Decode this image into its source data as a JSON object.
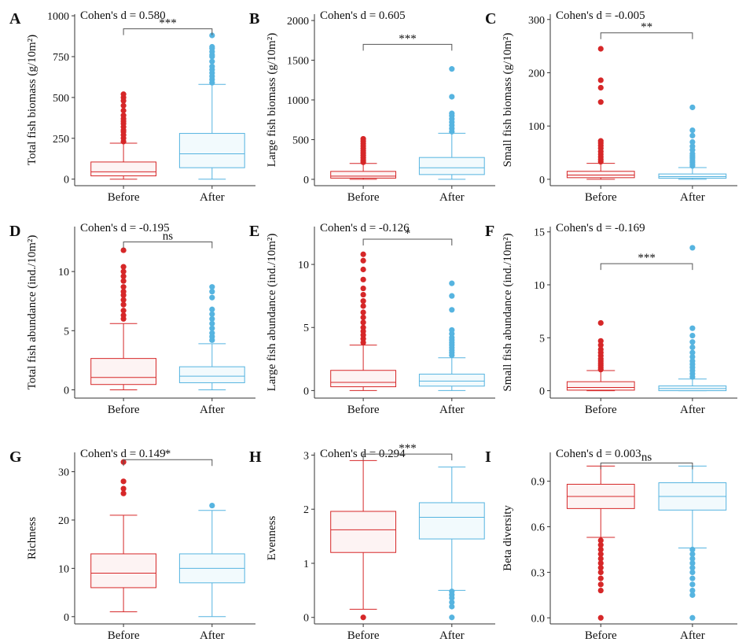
{
  "colors": {
    "before": "#d62728",
    "after": "#56b4e0"
  },
  "chart_data": [
    {
      "panel": "A",
      "type": "box",
      "cohen": "Cohen's d = 0.580",
      "ylabel": "Total fish biomass (g/10m²)",
      "categories": [
        "Before",
        "After"
      ],
      "ylim": [
        -40,
        1010
      ],
      "yticks": [
        0,
        250,
        500,
        750,
        1000
      ],
      "yticklabels": [
        "0",
        "250",
        "500",
        "750",
        "1000"
      ],
      "significance": "***",
      "bracket_y": 920,
      "boxes": [
        {
          "name": "Before",
          "min": 0,
          "q1": 20,
          "median": 45,
          "q3": 105,
          "max": 220,
          "outliers": [
            230,
            250,
            270,
            290,
            300,
            320,
            340,
            355,
            370,
            390,
            420,
            450,
            480,
            500,
            520
          ]
        },
        {
          "name": "After",
          "min": 0,
          "q1": 70,
          "median": 155,
          "q3": 280,
          "max": 580,
          "outliers": [
            590,
            610,
            630,
            650,
            670,
            690,
            720,
            750,
            760,
            780,
            800,
            810,
            880
          ]
        }
      ]
    },
    {
      "panel": "B",
      "type": "box",
      "cohen": "Cohen's d = 0.605",
      "ylabel": "Large fish biomass (g/10m²)",
      "categories": [
        "Before",
        "After"
      ],
      "ylim": [
        -80,
        2080
      ],
      "yticks": [
        0,
        500,
        1000,
        1500,
        2000
      ],
      "yticklabels": [
        "0",
        "500",
        "1000",
        "1500",
        "2000"
      ],
      "significance": "***",
      "bracket_y": 1700,
      "boxes": [
        {
          "name": "Before",
          "min": 0,
          "q1": 15,
          "median": 40,
          "q3": 100,
          "max": 200,
          "outliers": [
            215,
            240,
            270,
            300,
            330,
            360,
            390,
            420,
            450,
            480,
            510
          ]
        },
        {
          "name": "After",
          "min": 0,
          "q1": 60,
          "median": 145,
          "q3": 275,
          "max": 580,
          "outliers": [
            600,
            640,
            680,
            720,
            760,
            800,
            830,
            1040,
            1390
          ]
        }
      ]
    },
    {
      "panel": "C",
      "type": "box",
      "cohen": "Cohen's d = -0.005",
      "ylabel": "Small fish biomass (g/10m²)",
      "categories": [
        "Before",
        "After"
      ],
      "ylim": [
        -12,
        310
      ],
      "yticks": [
        0,
        100,
        200,
        300
      ],
      "yticklabels": [
        "0",
        "100",
        "200",
        "300"
      ],
      "significance": "**",
      "bracket_y": 275,
      "boxes": [
        {
          "name": "Before",
          "min": 0,
          "q1": 3,
          "median": 8,
          "q3": 15,
          "max": 30,
          "outliers": [
            33,
            37,
            42,
            47,
            52,
            58,
            63,
            68,
            72,
            145,
            172,
            186,
            245
          ]
        },
        {
          "name": "After",
          "min": 0,
          "q1": 2,
          "median": 5,
          "q3": 10,
          "max": 22,
          "outliers": [
            25,
            28,
            32,
            36,
            40,
            44,
            48,
            55,
            62,
            70,
            82,
            92,
            135
          ]
        }
      ]
    },
    {
      "panel": "D",
      "type": "box",
      "cohen": "Cohen's d = -0.195",
      "ylabel": "Total fish abundance (ind./10m²)",
      "categories": [
        "Before",
        "After"
      ],
      "ylim": [
        -0.7,
        13.8
      ],
      "yticks": [
        0,
        5,
        10
      ],
      "yticklabels": [
        "0",
        "5",
        "10"
      ],
      "significance": "ns",
      "bracket_y": 12.5,
      "boxes": [
        {
          "name": "Before",
          "min": 0,
          "q1": 0.45,
          "median": 1.05,
          "q3": 2.65,
          "max": 5.6,
          "outliers": [
            6.0,
            6.3,
            6.7,
            7.2,
            7.6,
            8.0,
            8.3,
            8.7,
            9.2,
            9.6,
            10.0,
            10.4,
            11.8
          ]
        },
        {
          "name": "After",
          "min": 0,
          "q1": 0.6,
          "median": 1.15,
          "q3": 1.95,
          "max": 3.9,
          "outliers": [
            4.2,
            4.5,
            4.8,
            5.2,
            5.6,
            6.0,
            6.4,
            6.8,
            7.8,
            8.3,
            8.7
          ]
        }
      ]
    },
    {
      "panel": "E",
      "type": "box",
      "cohen": "Cohen's d = -0.126",
      "ylabel": "Large fish abundance  (ind./10m²)",
      "categories": [
        "Before",
        "After"
      ],
      "ylim": [
        -0.6,
        13.0
      ],
      "yticks": [
        0,
        5,
        10
      ],
      "yticklabels": [
        "0",
        "5",
        "10"
      ],
      "significance": "*",
      "bracket_y": 12.0,
      "boxes": [
        {
          "name": "Before",
          "min": 0,
          "q1": 0.3,
          "median": 0.65,
          "q3": 1.6,
          "max": 3.6,
          "outliers": [
            3.8,
            4.1,
            4.4,
            4.7,
            5.0,
            5.4,
            5.8,
            6.2,
            6.7,
            7.1,
            7.6,
            8.1,
            8.8,
            9.6,
            10.3,
            10.8
          ]
        },
        {
          "name": "After",
          "min": 0,
          "q1": 0.35,
          "median": 0.75,
          "q3": 1.3,
          "max": 2.6,
          "outliers": [
            2.8,
            3.0,
            3.2,
            3.4,
            3.6,
            3.8,
            4.0,
            4.2,
            4.5,
            4.8,
            6.4,
            7.5,
            8.5
          ]
        }
      ]
    },
    {
      "panel": "F",
      "type": "box",
      "cohen": "Cohen's d = -0.169",
      "ylabel": "Small fish abundance  (ind./10m²)",
      "categories": [
        "Before",
        "After"
      ],
      "ylim": [
        -0.7,
        15.5
      ],
      "yticks": [
        0,
        5,
        10,
        15
      ],
      "yticklabels": [
        "0",
        "5",
        "10",
        "15"
      ],
      "significance": "***",
      "bracket_y": 12.0,
      "boxes": [
        {
          "name": "Before",
          "min": 0,
          "q1": 0.05,
          "median": 0.3,
          "q3": 0.85,
          "max": 1.9,
          "outliers": [
            2.0,
            2.2,
            2.4,
            2.6,
            2.8,
            3.0,
            3.3,
            3.6,
            3.9,
            4.3,
            4.7,
            6.4
          ]
        },
        {
          "name": "After",
          "min": 0,
          "q1": 0.0,
          "median": 0.2,
          "q3": 0.45,
          "max": 1.1,
          "outliers": [
            1.3,
            1.6,
            1.9,
            2.2,
            2.5,
            2.8,
            3.2,
            3.6,
            4.1,
            4.6,
            5.2,
            5.9,
            13.5
          ]
        }
      ]
    },
    {
      "panel": "G",
      "type": "box",
      "cohen": "Cohen's d = 0.149",
      "ylabel": "Richness",
      "categories": [
        "Before",
        "After"
      ],
      "ylim": [
        -1.5,
        34
      ],
      "yticks": [
        0,
        10,
        20,
        30
      ],
      "yticklabels": [
        "0",
        "10",
        "20",
        "30"
      ],
      "significance": "*",
      "bracket_y": 32.5,
      "boxes": [
        {
          "name": "Before",
          "min": 1,
          "q1": 6,
          "median": 9,
          "q3": 13,
          "max": 21,
          "outliers": [
            25.5,
            26.5,
            28,
            32
          ]
        },
        {
          "name": "After",
          "min": 0,
          "q1": 7,
          "median": 10,
          "q3": 13,
          "max": 22,
          "outliers": [
            23
          ]
        }
      ]
    },
    {
      "panel": "H",
      "type": "box",
      "cohen": "Cohen's d = 0.294",
      "ylabel": "Evenness",
      "categories": [
        "Before",
        "After"
      ],
      "ylim": [
        -0.12,
        3.05
      ],
      "yticks": [
        0,
        1,
        2,
        3
      ],
      "yticklabels": [
        "0",
        "1",
        "2",
        "3"
      ],
      "significance": "***",
      "bracket_y": 3.02,
      "boxes": [
        {
          "name": "Before",
          "min": 0.15,
          "q1": 1.2,
          "median": 1.62,
          "q3": 1.96,
          "max": 2.9,
          "outliers": [
            0.0
          ]
        },
        {
          "name": "After",
          "min": 0.5,
          "q1": 1.45,
          "median": 1.85,
          "q3": 2.12,
          "max": 2.78,
          "outliers": [
            0.0,
            0.2,
            0.28,
            0.36,
            0.42,
            0.48
          ]
        }
      ]
    },
    {
      "panel": "I",
      "type": "box",
      "cohen": "Cohen's d = 0.003",
      "ylabel": "Beta diversity",
      "categories": [
        "Before",
        "After"
      ],
      "ylim": [
        -0.04,
        1.09
      ],
      "yticks": [
        0,
        0.3,
        0.6,
        0.9
      ],
      "yticklabels": [
        "0.0",
        "0.3",
        "0.6",
        "0.9"
      ],
      "significance": "ns",
      "bracket_y": 1.02,
      "boxes": [
        {
          "name": "Before",
          "min": 0.53,
          "q1": 0.72,
          "median": 0.8,
          "q3": 0.88,
          "max": 1.0,
          "outliers": [
            0.0,
            0.18,
            0.22,
            0.26,
            0.3,
            0.33,
            0.36,
            0.39,
            0.42,
            0.45,
            0.48,
            0.51
          ]
        },
        {
          "name": "After",
          "min": 0.46,
          "q1": 0.71,
          "median": 0.8,
          "q3": 0.89,
          "max": 1.0,
          "outliers": [
            0.0,
            0.15,
            0.18,
            0.22,
            0.26,
            0.3,
            0.33,
            0.36,
            0.39,
            0.42,
            0.45
          ]
        }
      ]
    }
  ]
}
